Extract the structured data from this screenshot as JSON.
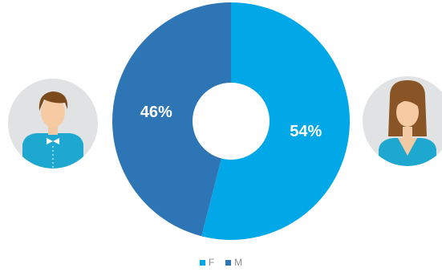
{
  "chart_data": {
    "type": "pie",
    "variant": "donut",
    "categories": [
      "F",
      "M"
    ],
    "values": [
      54,
      46
    ],
    "labels": [
      "54%",
      "46%"
    ],
    "colors": [
      "#00a8e8",
      "#2e75b6"
    ],
    "legend_position": "bottom-center",
    "title": ""
  },
  "icons": {
    "left": "male-avatar-icon",
    "right": "female-avatar-icon"
  }
}
